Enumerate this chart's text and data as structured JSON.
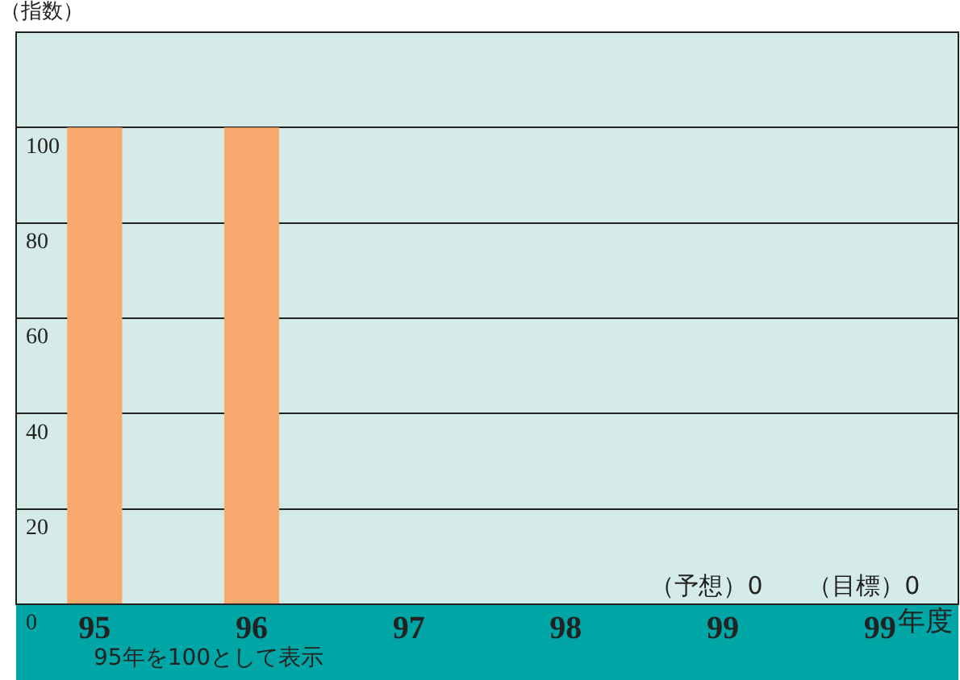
{
  "chart_data": {
    "type": "bar",
    "ylabel": "（指数）",
    "xlabel": "年度",
    "categories": [
      "95",
      "96",
      "97",
      "98",
      "99",
      "99"
    ],
    "values": [
      100,
      100,
      0,
      0,
      0,
      0
    ],
    "value_labels": [
      null,
      null,
      null,
      null,
      "（予想）0",
      "（目標）0"
    ],
    "color": "#f8a96e",
    "ylim": [
      0,
      120
    ],
    "yticks": [
      0,
      20,
      40,
      60,
      80,
      100,
      {
        "value": 120,
        "label": null
      }
    ],
    "grid": "y",
    "legend": false,
    "annotations": [
      "95年を100として表示"
    ]
  }
}
